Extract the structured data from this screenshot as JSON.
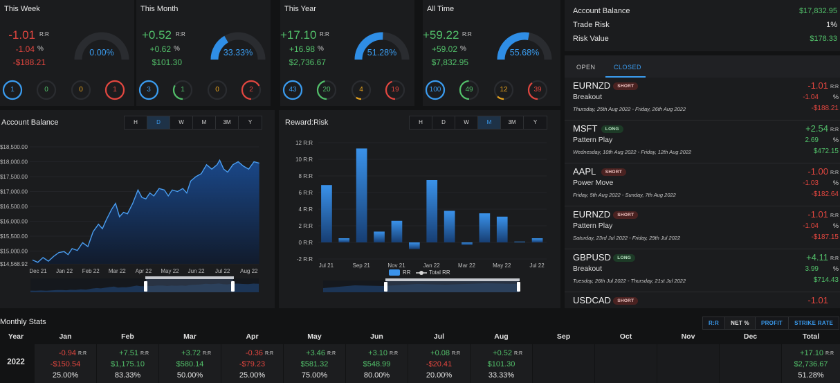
{
  "cards": [
    {
      "title": "This Week",
      "rr": "-1.01",
      "rr_unit": "R:R",
      "pct": "-1.04",
      "pct_unit": "%",
      "money": "-$188.21",
      "gauge_label": "0.00%",
      "gauge_fraction": 0.0,
      "sign": "neg",
      "rings": [
        {
          "value": "1",
          "color": "#3a9cf0",
          "fraction": 1.0
        },
        {
          "value": "0",
          "color": "#52c06a",
          "fraction": 0.0
        },
        {
          "value": "0",
          "color": "#e8a31d",
          "fraction": 0.0
        },
        {
          "value": "1",
          "color": "#e2463f",
          "fraction": 1.0
        }
      ]
    },
    {
      "title": "This Month",
      "rr": "+0.52",
      "rr_unit": "R:R",
      "pct": "+0.62",
      "pct_unit": "%",
      "money": "$101.30",
      "gauge_label": "33.33%",
      "gauge_fraction": 0.3333,
      "sign": "pos",
      "rings": [
        {
          "value": "3",
          "color": "#3a9cf0",
          "fraction": 1.0
        },
        {
          "value": "1",
          "color": "#52c06a",
          "fraction": 0.333
        },
        {
          "value": "0",
          "color": "#e8a31d",
          "fraction": 0.0
        },
        {
          "value": "2",
          "color": "#e2463f",
          "fraction": 0.667
        }
      ]
    },
    {
      "title": "This Year",
      "rr": "+17.10",
      "rr_unit": "R:R",
      "pct": "+16.98",
      "pct_unit": "%",
      "money": "$2,736.67",
      "gauge_label": "51.28%",
      "gauge_fraction": 0.5128,
      "sign": "pos",
      "rings": [
        {
          "value": "43",
          "color": "#3a9cf0",
          "fraction": 1.0
        },
        {
          "value": "20",
          "color": "#52c06a",
          "fraction": 0.465
        },
        {
          "value": "4",
          "color": "#e8a31d",
          "fraction": 0.093
        },
        {
          "value": "19",
          "color": "#e2463f",
          "fraction": 0.442
        }
      ]
    },
    {
      "title": "All Time",
      "rr": "+59.22",
      "rr_unit": "R:R",
      "pct": "+59.02",
      "pct_unit": "%",
      "money": "$7,832.95",
      "gauge_label": "55.68%",
      "gauge_fraction": 0.5568,
      "sign": "pos",
      "rings": [
        {
          "value": "100",
          "color": "#3a9cf0",
          "fraction": 1.0
        },
        {
          "value": "49",
          "color": "#52c06a",
          "fraction": 0.49
        },
        {
          "value": "12",
          "color": "#e8a31d",
          "fraction": 0.12
        },
        {
          "value": "39",
          "color": "#e2463f",
          "fraction": 0.39
        }
      ]
    }
  ],
  "account": {
    "balance_label": "Account Balance",
    "balance_value": "$17,832.95",
    "risk_label": "Trade Risk",
    "risk_value": "1%",
    "riskval_label": "Risk Value",
    "riskval_value": "$178.33"
  },
  "trades_panel": {
    "tabs": [
      {
        "label": "OPEN",
        "active": false
      },
      {
        "label": "CLOSED",
        "active": true
      }
    ],
    "trades": [
      {
        "symbol": "EURNZD",
        "side": "SHORT",
        "strategy": "Breakout",
        "dates": "Thursday, 25th Aug 2022 - Friday, 26th Aug 2022",
        "rr": "-1.01",
        "rr_unit": "R:R",
        "pct": "-1.04",
        "pct_unit": "%",
        "money": "-$188.21",
        "sign": "neg"
      },
      {
        "symbol": "MSFT",
        "side": "LONG",
        "strategy": "Pattern Play",
        "dates": "Wednesday, 10th Aug 2022 - Friday, 12th Aug 2022",
        "rr": "+2.54",
        "rr_unit": "R:R",
        "pct": "2.69",
        "pct_unit": "%",
        "money": "$472.15",
        "sign": "pos"
      },
      {
        "symbol": "AAPL",
        "side": "SHORT",
        "strategy": "Power Move",
        "dates": "Friday, 5th Aug 2022 - Sunday, 7th Aug 2022",
        "rr": "-1.00",
        "rr_unit": "R:R",
        "pct": "-1.03",
        "pct_unit": "%",
        "money": "-$182.64",
        "sign": "neg"
      },
      {
        "symbol": "EURNZD",
        "side": "SHORT",
        "strategy": "Pattern Play",
        "dates": "Saturday, 23rd Jul 2022 - Friday, 29th Jul 2022",
        "rr": "-1.01",
        "rr_unit": "R:R",
        "pct": "-1.04",
        "pct_unit": "%",
        "money": "-$187.15",
        "sign": "neg"
      },
      {
        "symbol": "GBPUSD",
        "side": "LONG",
        "strategy": "Breakout",
        "dates": "Tuesday, 26th Jul 2022 - Thursday, 21st Jul 2022",
        "rr": "+4.11",
        "rr_unit": "R:R",
        "pct": "3.99",
        "pct_unit": "%",
        "money": "$714.43",
        "sign": "pos"
      },
      {
        "symbol": "USDCAD",
        "side": "SHORT",
        "strategy": "",
        "dates": "",
        "rr": "-1.01",
        "rr_unit": "",
        "pct": "",
        "pct_unit": "",
        "money": "",
        "sign": "neg"
      }
    ]
  },
  "timeframes": [
    "H",
    "D",
    "W",
    "M",
    "3M",
    "Y"
  ],
  "chart_data": [
    {
      "type": "area",
      "title": "Account Balance",
      "active_timeframe": "D",
      "y_ticks": [
        "$18,500.00",
        "$18,000.00",
        "$17,500.00",
        "$17,000.00",
        "$16,500.00",
        "$16,000.00",
        "$15,500.00",
        "$15,000.00",
        "$14,568.92"
      ],
      "ylim": [
        14568.92,
        18500
      ],
      "x_ticks": [
        "Dec 21",
        "Jan 22",
        "Feb 22",
        "Mar 22",
        "Apr 22",
        "May 22",
        "Jun 22",
        "Jul 22",
        "Aug 22"
      ],
      "x": [
        0,
        0.2,
        0.4,
        0.6,
        0.8,
        1,
        1.2,
        1.35,
        1.5,
        1.7,
        1.9,
        2.1,
        2.3,
        2.5,
        2.65,
        2.8,
        3,
        3.15,
        3.3,
        3.45,
        3.6,
        3.8,
        4,
        4.15,
        4.3,
        4.45,
        4.6,
        4.8,
        5,
        5.15,
        5.3,
        5.5,
        5.7,
        5.85,
        6,
        6.2,
        6.4,
        6.6,
        6.8,
        7,
        7.1,
        7.25,
        7.4,
        7.6,
        7.8,
        8,
        8.2,
        8.4,
        8.6
      ],
      "values": [
        14700,
        14620,
        14780,
        14660,
        14820,
        14950,
        14980,
        14880,
        15080,
        15020,
        15280,
        15150,
        15650,
        15900,
        15750,
        16050,
        16400,
        16600,
        16150,
        16300,
        16250,
        16600,
        17050,
        16800,
        16750,
        16950,
        16850,
        17100,
        17050,
        16850,
        17050,
        17000,
        17100,
        16950,
        17350,
        17500,
        17600,
        17900,
        17750,
        17900,
        18050,
        17750,
        17650,
        17900,
        18000,
        17850,
        17750,
        18000,
        17950
      ]
    },
    {
      "type": "bar",
      "title": "Reward:Risk",
      "active_timeframe": "M",
      "y_ticks": [
        "12 R:R",
        "10 R:R",
        "8 R:R",
        "6 R:R",
        "4 R:R",
        "2 R:R",
        "0 R:R",
        "-2 R:R"
      ],
      "ylim": [
        -2,
        12
      ],
      "x_ticks": [
        "Jul 21",
        "Sep 21",
        "Nov 21",
        "Jan 22",
        "Mar 22",
        "May 22",
        "Jul 22"
      ],
      "legend": [
        "RR",
        "Total RR"
      ],
      "series": [
        {
          "name": "RR",
          "values": [
            6.9,
            0.5,
            11.3,
            1.3,
            2.6,
            -0.8,
            7.5,
            3.8,
            -0.3,
            3.5,
            3.1,
            0.1,
            0.5
          ]
        }
      ]
    }
  ],
  "monthly": {
    "title": "Monthly Stats",
    "modes": [
      {
        "label": "R:R",
        "active": false
      },
      {
        "label": "NET %",
        "active": true
      },
      {
        "label": "PROFIT",
        "active": false
      },
      {
        "label": "STRIKE RATE",
        "active": false
      }
    ],
    "headers": [
      "Year",
      "Jan",
      "Feb",
      "Mar",
      "Apr",
      "May",
      "Jun",
      "Jul",
      "Aug",
      "Sep",
      "Oct",
      "Nov",
      "Dec",
      "Total"
    ],
    "year": "2022",
    "rr_unit": "R:R",
    "cells": [
      {
        "rr": "-0.94",
        "money": "-$150.54",
        "pct": "25.00%",
        "sign": "neg"
      },
      {
        "rr": "+7.51",
        "money": "$1,175.10",
        "pct": "83.33%",
        "sign": "pos"
      },
      {
        "rr": "+3.72",
        "money": "$580.14",
        "pct": "50.00%",
        "sign": "pos"
      },
      {
        "rr": "-0.36",
        "money": "-$79.23",
        "pct": "25.00%",
        "sign": "neg"
      },
      {
        "rr": "+3.46",
        "money": "$581.32",
        "pct": "75.00%",
        "sign": "pos"
      },
      {
        "rr": "+3.10",
        "money": "$548.99",
        "pct": "80.00%",
        "sign": "pos"
      },
      {
        "rr": "+0.08",
        "money": "-$20.41",
        "pct": "20.00%",
        "sign": "mix"
      },
      {
        "rr": "+0.52",
        "money": "$101.30",
        "pct": "33.33%",
        "sign": "pos"
      },
      null,
      null,
      null,
      null,
      {
        "rr": "+17.10",
        "money": "$2,736.67",
        "pct": "51.28%",
        "sign": "pos"
      }
    ]
  }
}
